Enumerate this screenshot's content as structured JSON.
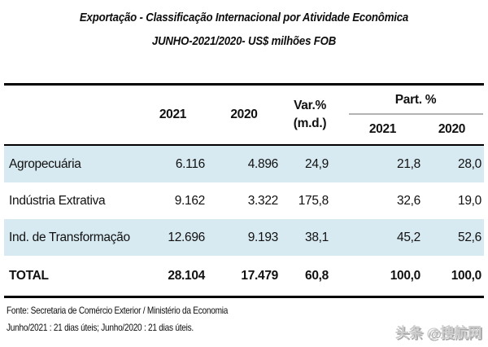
{
  "chart_data": {
    "type": "table",
    "title": "Exportação - Classificação Internacional por Atividade Econômica",
    "subtitle": "JUNHO-2021/2020- US$ milhões FOB",
    "header": {
      "col_2021": "2021",
      "col_2020": "2020",
      "var_line1": "Var.%",
      "var_line2": "(m.d.)",
      "part_label": "Part. %",
      "part_sub_2021": "2021",
      "part_sub_2020": "2020"
    },
    "rows": [
      {
        "label": "Agropecuária",
        "y2021": "6.116",
        "y2020": "4.896",
        "var_pct": "24,9",
        "part_2021": "21,8",
        "part_2020": "28,0"
      },
      {
        "label": "Indústria Extrativa",
        "y2021": "9.162",
        "y2020": "3.322",
        "var_pct": "175,8",
        "part_2021": "32,6",
        "part_2020": "19,0"
      },
      {
        "label": "Ind. de Transformação",
        "y2021": "12.696",
        "y2020": "9.193",
        "var_pct": "38,1",
        "part_2021": "45,2",
        "part_2020": "52,6"
      }
    ],
    "total_row": {
      "label": "TOTAL",
      "y2021": "28.104",
      "y2020": "17.479",
      "var_pct": "60,8",
      "part_2021": "100,0",
      "part_2020": "100,0"
    }
  },
  "footer": {
    "source": "Fonte: Secretaria de Comércio Exterior / Ministério da Economia",
    "note": "Junho/2021 : 21 dias úteis; Junho/2020 : 21 dias úteis."
  },
  "watermark": "头条 @搜航网",
  "colors": {
    "row_highlight": "#d7e9f1",
    "table_border": "#000000",
    "part_underline": "#b3b3b3",
    "watermark_gray": "#cdcdcd"
  }
}
